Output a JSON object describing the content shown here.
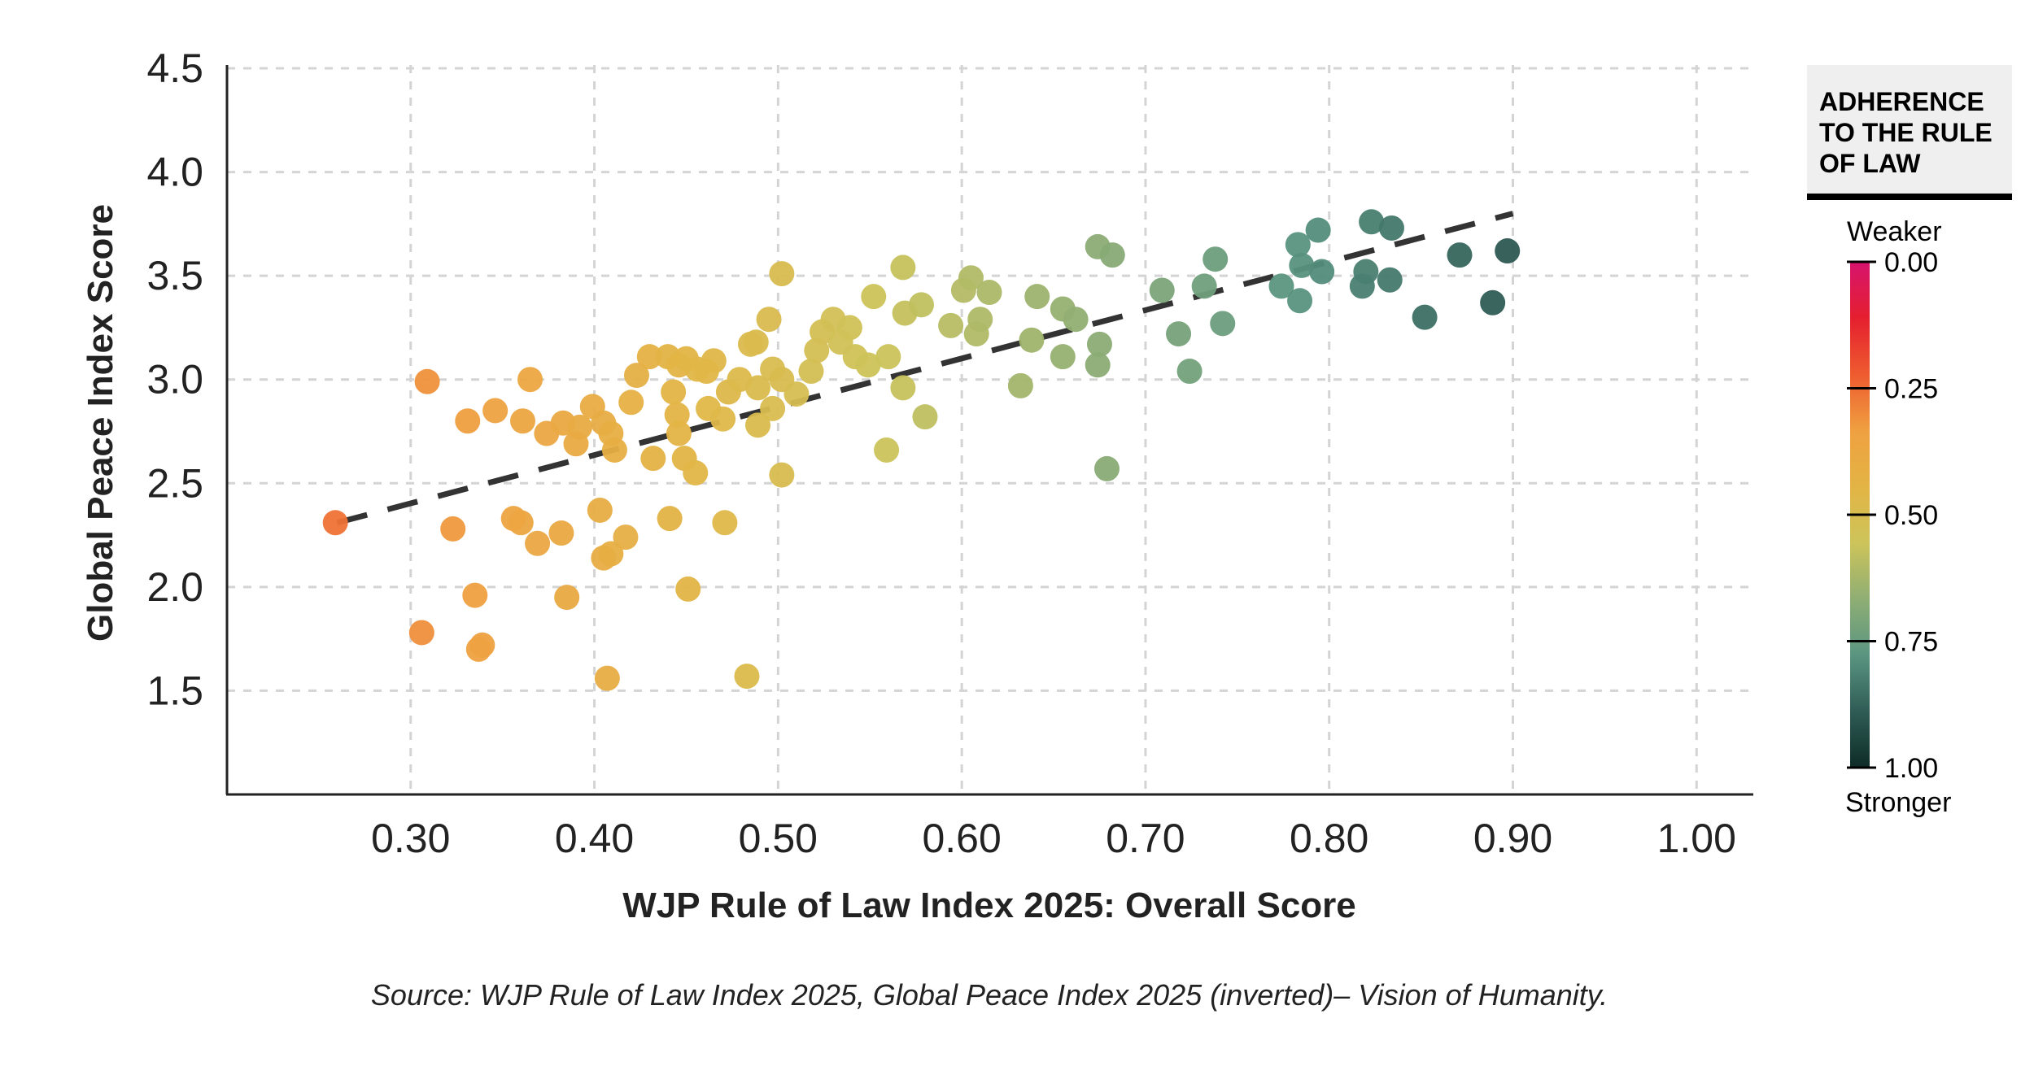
{
  "chart_data": {
    "type": "scatter",
    "xlabel": "WJP Rule of Law Index 2025: Overall Score",
    "ylabel": "Global Peace Index Score",
    "xlim": [
      0.2,
      1.03
    ],
    "ylim": [
      1.0,
      4.5
    ],
    "xticks": [
      "0.30",
      "0.40",
      "0.50",
      "0.60",
      "0.70",
      "0.80",
      "0.90",
      "1.00"
    ],
    "yticks": [
      "1.5",
      "2.0",
      "2.5",
      "3.0",
      "3.5",
      "4.0",
      "4.5"
    ],
    "grid": true,
    "trendline": {
      "style": "dashed",
      "color": "#333333",
      "from": [
        0.26,
        2.31
      ],
      "to": [
        0.9,
        3.8
      ]
    },
    "source": "Source: WJP Rule of Law Index 2025, Global Peace Index 2025 (inverted)– Vision of Humanity.",
    "colorbar": {
      "title_lines": [
        "ADHERENCE",
        "TO THE RULE",
        "OF LAW"
      ],
      "top_label": "Weaker",
      "bottom_label": "Stronger",
      "ticks": [
        "0.00",
        "0.25",
        "0.50",
        "0.75",
        "1.00"
      ],
      "stops": [
        "#d6146e",
        "#e51f2f",
        "#ee5b2f",
        "#efa040",
        "#e3b445",
        "#cdc45a",
        "#8fae74",
        "#5a9581",
        "#2f5c55",
        "#0d2b26"
      ]
    },
    "points": [
      [
        0.259,
        2.31
      ],
      [
        0.309,
        2.99
      ],
      [
        0.331,
        2.8
      ],
      [
        0.346,
        2.85
      ],
      [
        0.365,
        3.0
      ],
      [
        0.361,
        2.8
      ],
      [
        0.374,
        2.74
      ],
      [
        0.383,
        2.79
      ],
      [
        0.392,
        2.77
      ],
      [
        0.39,
        2.69
      ],
      [
        0.399,
        2.87
      ],
      [
        0.405,
        2.79
      ],
      [
        0.409,
        2.74
      ],
      [
        0.411,
        2.66
      ],
      [
        0.42,
        2.89
      ],
      [
        0.423,
        3.02
      ],
      [
        0.43,
        3.11
      ],
      [
        0.44,
        3.11
      ],
      [
        0.446,
        3.07
      ],
      [
        0.45,
        3.1
      ],
      [
        0.456,
        3.05
      ],
      [
        0.465,
        3.09
      ],
      [
        0.461,
        3.04
      ],
      [
        0.443,
        2.94
      ],
      [
        0.445,
        2.83
      ],
      [
        0.446,
        2.74
      ],
      [
        0.432,
        2.62
      ],
      [
        0.449,
        2.62
      ],
      [
        0.455,
        2.55
      ],
      [
        0.462,
        2.86
      ],
      [
        0.47,
        2.81
      ],
      [
        0.473,
        2.94
      ],
      [
        0.479,
        3.0
      ],
      [
        0.485,
        3.17
      ],
      [
        0.488,
        3.18
      ],
      [
        0.495,
        3.29
      ],
      [
        0.489,
        2.96
      ],
      [
        0.489,
        2.78
      ],
      [
        0.497,
        3.05
      ],
      [
        0.497,
        2.86
      ],
      [
        0.502,
        3.0
      ],
      [
        0.502,
        3.51
      ],
      [
        0.502,
        2.54
      ],
      [
        0.51,
        2.93
      ],
      [
        0.518,
        3.04
      ],
      [
        0.521,
        3.14
      ],
      [
        0.524,
        3.23
      ],
      [
        0.53,
        3.29
      ],
      [
        0.534,
        3.18
      ],
      [
        0.539,
        3.25
      ],
      [
        0.542,
        3.11
      ],
      [
        0.549,
        3.07
      ],
      [
        0.552,
        3.4
      ],
      [
        0.56,
        3.11
      ],
      [
        0.559,
        2.66
      ],
      [
        0.568,
        3.54
      ],
      [
        0.569,
        3.32
      ],
      [
        0.568,
        2.96
      ],
      [
        0.578,
        3.36
      ],
      [
        0.58,
        2.82
      ],
      [
        0.594,
        3.26
      ],
      [
        0.601,
        3.43
      ],
      [
        0.605,
        3.49
      ],
      [
        0.608,
        3.22
      ],
      [
        0.61,
        3.29
      ],
      [
        0.615,
        3.42
      ],
      [
        0.632,
        2.97
      ],
      [
        0.641,
        3.4
      ],
      [
        0.638,
        3.19
      ],
      [
        0.655,
        3.11
      ],
      [
        0.655,
        3.34
      ],
      [
        0.662,
        3.29
      ],
      [
        0.674,
        3.64
      ],
      [
        0.682,
        3.6
      ],
      [
        0.674,
        3.07
      ],
      [
        0.675,
        3.17
      ],
      [
        0.679,
        2.57
      ],
      [
        0.709,
        3.43
      ],
      [
        0.718,
        3.22
      ],
      [
        0.732,
        3.45
      ],
      [
        0.738,
        3.58
      ],
      [
        0.742,
        3.27
      ],
      [
        0.724,
        3.04
      ],
      [
        0.774,
        3.45
      ],
      [
        0.783,
        3.65
      ],
      [
        0.785,
        3.55
      ],
      [
        0.784,
        3.38
      ],
      [
        0.794,
        3.72
      ],
      [
        0.796,
        3.52
      ],
      [
        0.823,
        3.76
      ],
      [
        0.834,
        3.73
      ],
      [
        0.82,
        3.52
      ],
      [
        0.818,
        3.45
      ],
      [
        0.833,
        3.48
      ],
      [
        0.852,
        3.3
      ],
      [
        0.871,
        3.6
      ],
      [
        0.897,
        3.62
      ],
      [
        0.889,
        3.37
      ],
      [
        0.323,
        2.28
      ],
      [
        0.335,
        1.96
      ],
      [
        0.306,
        1.78
      ],
      [
        0.337,
        1.7
      ],
      [
        0.339,
        1.72
      ],
      [
        0.356,
        2.33
      ],
      [
        0.36,
        2.31
      ],
      [
        0.369,
        2.21
      ],
      [
        0.382,
        2.26
      ],
      [
        0.385,
        1.95
      ],
      [
        0.403,
        2.37
      ],
      [
        0.405,
        2.14
      ],
      [
        0.409,
        2.16
      ],
      [
        0.417,
        2.24
      ],
      [
        0.441,
        2.33
      ],
      [
        0.451,
        1.99
      ],
      [
        0.407,
        1.56
      ],
      [
        0.471,
        2.31
      ],
      [
        0.483,
        1.57
      ]
    ]
  }
}
